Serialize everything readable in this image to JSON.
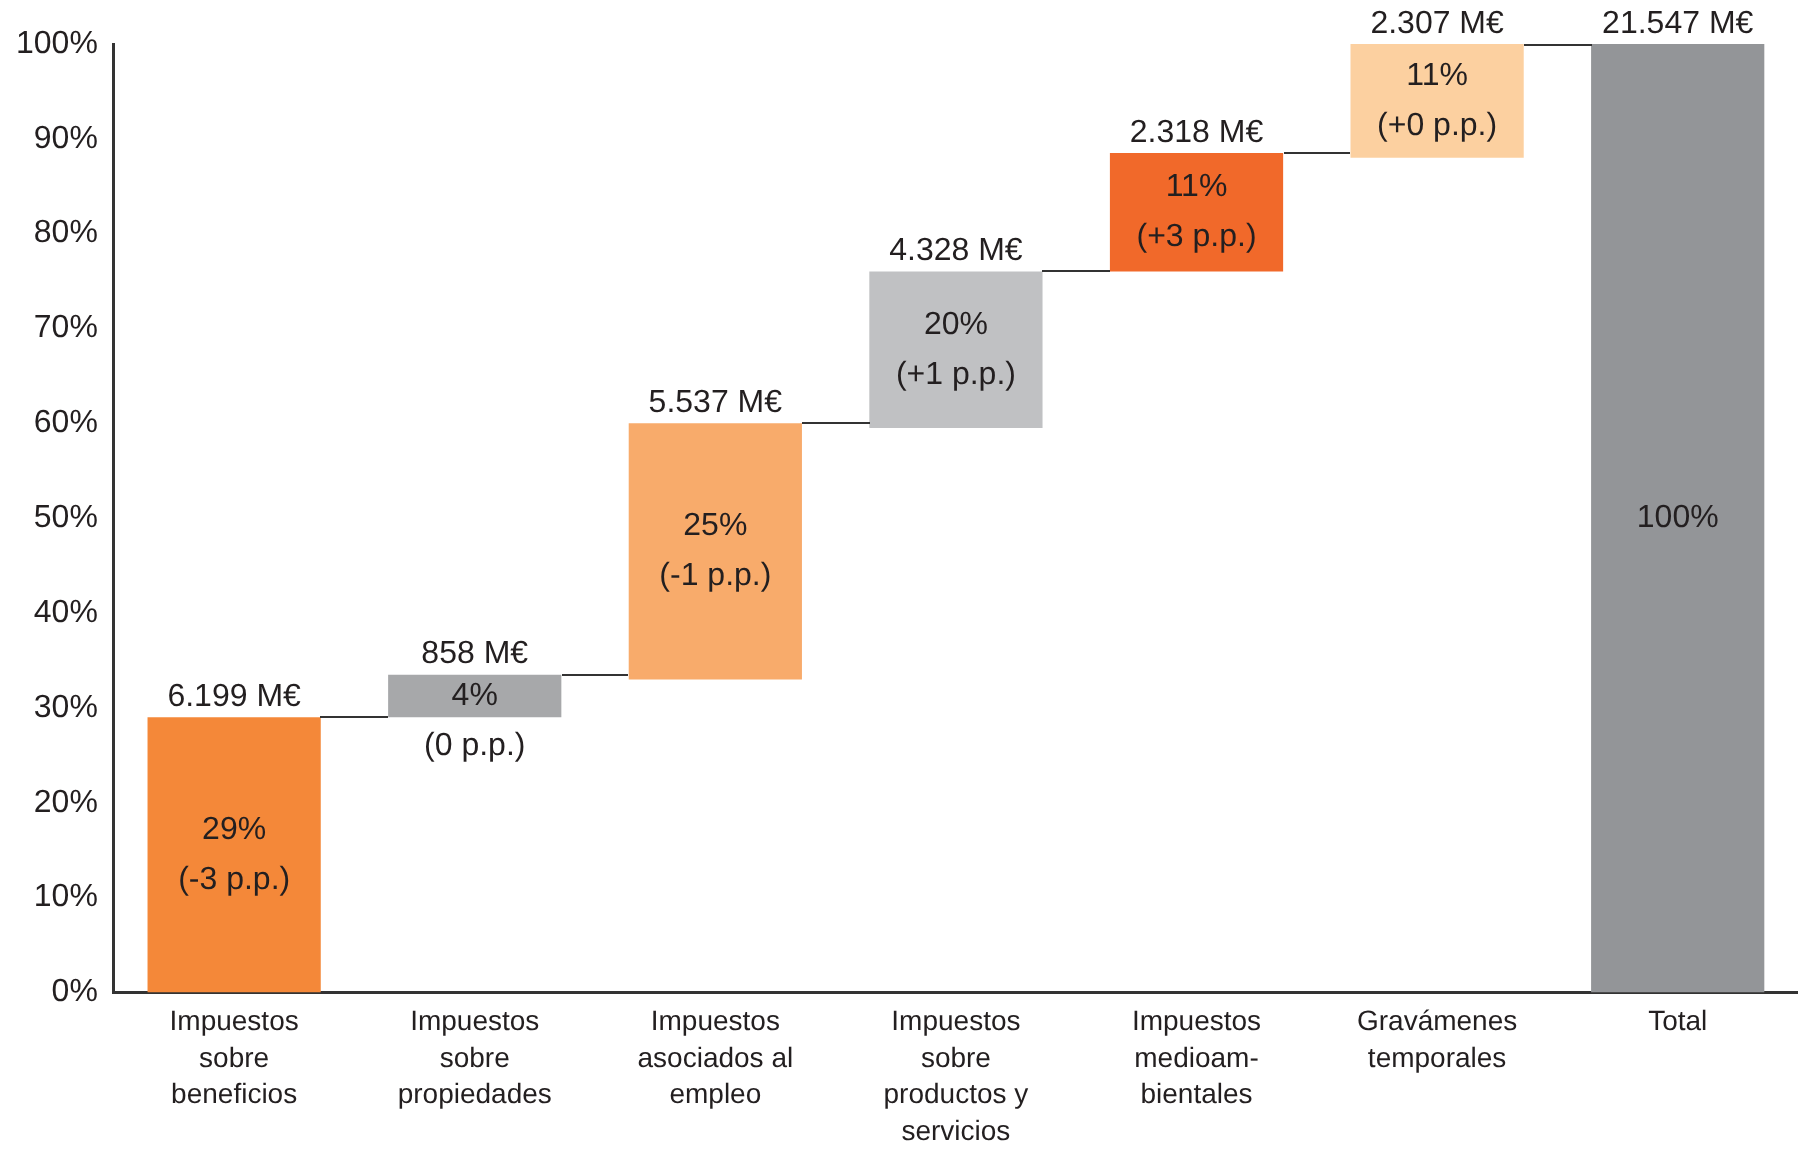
{
  "chart_data": {
    "type": "bar",
    "categories": [
      "Impuestos\nsobre\nbeneficios",
      "Impuestos\nsobre\npropiedades",
      "Impuestos\nasociados al\nempleo",
      "Impuestos\nsobre\nproductos y\nservicios",
      "Impuestos\nmedioam-\nbientales",
      "Gravámenes\ntemporales",
      "Total"
    ],
    "base": [
      0,
      29,
      33,
      59.5,
      76,
      88,
      0
    ],
    "values": [
      29,
      4.5,
      27,
      16.5,
      12.5,
      12,
      100
    ],
    "colors": [
      "#f48839",
      "#a7a8aa",
      "#f8ab6b",
      "#c0c1c3",
      "#f1692a",
      "#fcd0a0",
      "#939598"
    ],
    "annotations": [
      {
        "text": "6.199 M€",
        "x": "Impuestos\nsobre\nbeneficios",
        "y": 29
      },
      {
        "text": "858 M€",
        "x": "Impuestos\nsobre\npropiedades",
        "y": 33.5
      },
      {
        "text": "5.537 M€",
        "x": "Impuestos\nasociados al\nempleo",
        "y": 60
      },
      {
        "text": "4.328 M€",
        "x": "Impuestos\nsobre\nproductos y\nservicios",
        "y": 76
      },
      {
        "text": "2.318 M€",
        "x": "Impuestos\nmedioam-\nbientales",
        "y": 88.5
      },
      {
        "text": "2.307 M€",
        "x": "Gravámenes\ntemporales",
        "y": 100
      },
      {
        "text": "21.547 M€",
        "x": "Total",
        "y": 100
      },
      "29%\n(-3 p.p.)",
      "4%\n(0 p.p.)",
      "25%\n(-1 p.p.)",
      "20%\n(+1 p.p.)",
      "11%\n(+3 p.p.)",
      "11%\n(+0 p.p.)",
      "100%"
    ],
    "ylim": [
      0,
      100
    ],
    "yticks": [
      {
        "value": 0,
        "label": "0%"
      },
      {
        "value": 10,
        "label": "10%"
      },
      {
        "value": 20,
        "label": "20%"
      },
      {
        "value": 30,
        "label": "30%"
      },
      {
        "value": 40,
        "label": "40%"
      },
      {
        "value": 50,
        "label": "50%"
      },
      {
        "value": 60,
        "label": "60%"
      },
      {
        "value": 70,
        "label": "70%"
      },
      {
        "value": 80,
        "label": "80%"
      },
      {
        "value": 90,
        "label": "90%"
      },
      {
        "value": 100,
        "label": "100%"
      }
    ],
    "grid": false,
    "legend": false
  }
}
